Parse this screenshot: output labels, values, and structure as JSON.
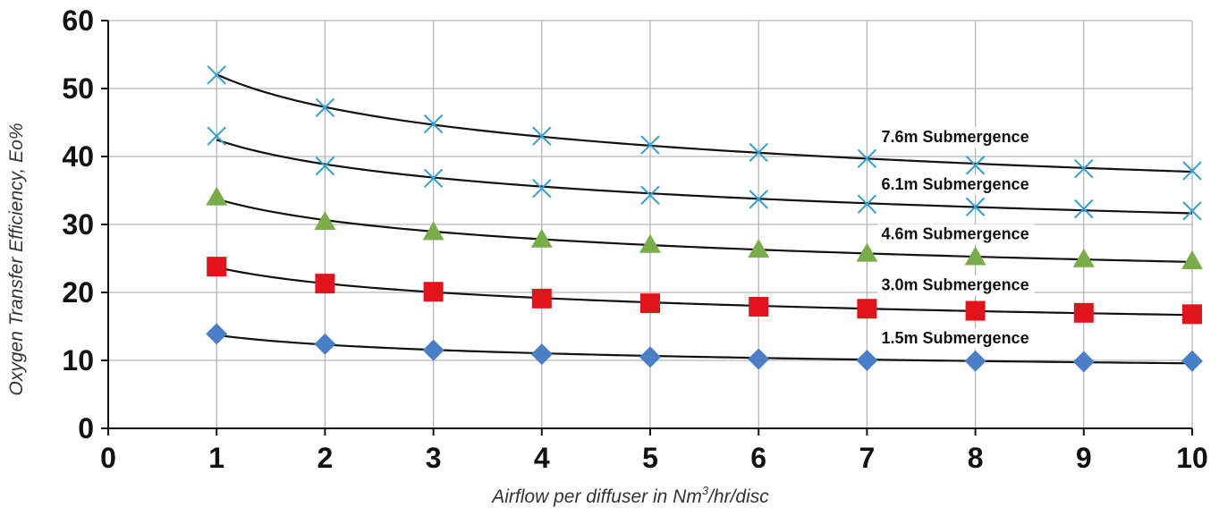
{
  "chart_data": {
    "type": "scatter",
    "title": "",
    "xlabel": "Airflow per diffuser in Nm",
    "xlabel_sup": "3",
    "xlabel_tail": "/hr/disc",
    "ylabel": "Oxygen Transfer Efficiency, Eo%",
    "xlim": [
      0,
      10
    ],
    "ylim": [
      0,
      60
    ],
    "xticks": [
      0,
      1,
      2,
      3,
      4,
      5,
      6,
      7,
      8,
      9,
      10
    ],
    "yticks": [
      0,
      10,
      20,
      30,
      40,
      50,
      60
    ],
    "grid": true,
    "legend": "none",
    "series": [
      {
        "name": "7.6m Submergence",
        "marker": "cross",
        "color": "#2e9fd8",
        "x": [
          1,
          2,
          3,
          4,
          5,
          6,
          7,
          8,
          9,
          10
        ],
        "y": [
          52,
          47.2,
          44.8,
          43,
          41.7,
          40.6,
          39.7,
          38.7,
          38.2,
          37.9
        ],
        "fit_label_at": [
          7.1,
          42.1
        ]
      },
      {
        "name": "6.1m Submergence",
        "marker": "cross",
        "color": "#2e9fd8",
        "x": [
          1,
          2,
          3,
          4,
          5,
          6,
          7,
          8,
          9,
          10
        ],
        "y": [
          43,
          38.6,
          36.8,
          35.3,
          34.3,
          33.7,
          33,
          32.6,
          32.3,
          32
        ],
        "fit_label_at": [
          7.1,
          35.1
        ]
      },
      {
        "name": "4.6m Submergence",
        "marker": "triangle",
        "color": "#7aac4a",
        "x": [
          1,
          2,
          3,
          4,
          5,
          6,
          7,
          8,
          9,
          10
        ],
        "y": [
          34,
          30.4,
          28.9,
          27.8,
          27,
          26.3,
          25.7,
          25.2,
          24.9,
          24.6
        ],
        "fit_label_at": [
          7.1,
          27.8
        ]
      },
      {
        "name": "3.0m Submergence",
        "marker": "square",
        "color": "#e3131c",
        "x": [
          1,
          2,
          3,
          4,
          5,
          6,
          7,
          8,
          9,
          10
        ],
        "y": [
          23.8,
          21.3,
          20.1,
          19.1,
          18.4,
          17.9,
          17.6,
          17.3,
          17,
          16.8
        ],
        "fit_label_at": [
          7.1,
          20.3
        ]
      },
      {
        "name": "1.5m Submergence",
        "marker": "diamond",
        "color": "#4a7fc8",
        "x": [
          1,
          2,
          3,
          4,
          5,
          6,
          7,
          8,
          9,
          10
        ],
        "y": [
          13.9,
          12.4,
          11.5,
          10.9,
          10.5,
          10.2,
          10,
          9.9,
          9.8,
          9.9
        ],
        "fit_label_at": [
          7.1,
          12.5
        ]
      }
    ]
  }
}
